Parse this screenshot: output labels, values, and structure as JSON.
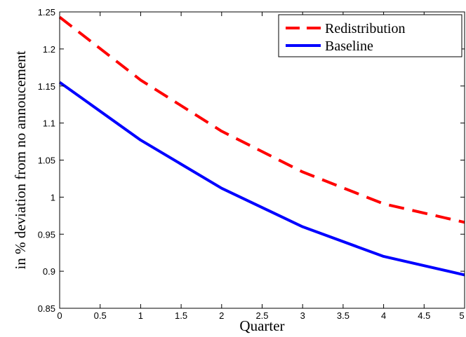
{
  "chart_data": {
    "type": "line",
    "title": "",
    "xlabel": "Quarter",
    "ylabel": "in % deviation from no annoucement",
    "xlim": [
      0,
      5
    ],
    "ylim": [
      0.85,
      1.25
    ],
    "xticks": [
      0,
      0.5,
      1,
      1.5,
      2,
      2.5,
      3,
      3.5,
      4,
      4.5,
      5
    ],
    "xtick_labels": [
      "0",
      "0.5",
      "1",
      "1.5",
      "2",
      "2.5",
      "3",
      "3.5",
      "4",
      "4.5",
      "5"
    ],
    "yticks": [
      0.85,
      0.9,
      0.95,
      1,
      1.05,
      1.1,
      1.15,
      1.2,
      1.25
    ],
    "ytick_labels": [
      "0.85",
      "0.9",
      "0.95",
      "1",
      "1.05",
      "1.1",
      "1.15",
      "1.2",
      "1.25"
    ],
    "grid": false,
    "legend_position": "top-right",
    "x": [
      0,
      1,
      2,
      3,
      4,
      5
    ],
    "series": [
      {
        "name": "Redistribution",
        "values": [
          1.243,
          1.158,
          1.089,
          1.034,
          0.991,
          0.966
        ],
        "color": "#ff0000",
        "style": "dashed"
      },
      {
        "name": "Baseline",
        "values": [
          1.155,
          1.077,
          1.012,
          0.96,
          0.92,
          0.895
        ],
        "color": "#0000ff",
        "style": "solid"
      }
    ]
  }
}
